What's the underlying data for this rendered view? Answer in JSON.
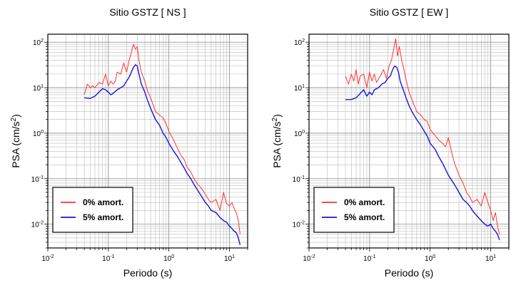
{
  "chart_data": [
    {
      "type": "line",
      "title": "Sitio GSTZ [ NS ]",
      "xlabel": "Periodo (s)",
      "ylabel_base": "PSA (cm/s",
      "ylabel_exp": "2",
      "ylabel_tail": ")",
      "x_scale": "log",
      "y_scale": "log",
      "xlim": [
        0.01,
        20
      ],
      "ylim": [
        0.003,
        150
      ],
      "grid": true,
      "legend_position": "bottom-left",
      "x_ticks": [
        {
          "base": "10",
          "exp": "-2"
        },
        {
          "base": "10",
          "exp": "-1"
        },
        {
          "base": "10",
          "exp": "0"
        },
        {
          "base": "10",
          "exp": "1"
        }
      ],
      "y_ticks": [
        {
          "base": "10",
          "exp": "-2"
        },
        {
          "base": "10",
          "exp": "-1"
        },
        {
          "base": "10",
          "exp": "0"
        },
        {
          "base": "10",
          "exp": "1"
        },
        {
          "base": "10",
          "exp": "2"
        }
      ],
      "series": [
        {
          "name": "0% amort.",
          "color": "#ff3333",
          "x": [
            0.04,
            0.045,
            0.05,
            0.055,
            0.06,
            0.07,
            0.08,
            0.09,
            0.1,
            0.11,
            0.12,
            0.13,
            0.14,
            0.16,
            0.18,
            0.2,
            0.22,
            0.24,
            0.26,
            0.28,
            0.3,
            0.32,
            0.35,
            0.4,
            0.45,
            0.5,
            0.6,
            0.7,
            0.8,
            0.9,
            1.0,
            1.2,
            1.4,
            1.6,
            1.8,
            2.0,
            2.3,
            2.6,
            3.0,
            3.5,
            4.0,
            4.5,
            5.0,
            6.0,
            7.0,
            8.0,
            9.0,
            10.0,
            11.0,
            12.0,
            13.0,
            14.0,
            15.0
          ],
          "y": [
            7,
            12,
            10,
            11,
            10,
            13,
            12,
            20,
            11,
            14,
            12,
            14,
            22,
            20,
            35,
            22,
            40,
            60,
            90,
            70,
            80,
            40,
            22,
            14,
            8,
            6,
            3,
            2.5,
            2.2,
            1.6,
            1.1,
            0.7,
            0.45,
            0.32,
            0.26,
            0.18,
            0.14,
            0.1,
            0.075,
            0.06,
            0.045,
            0.035,
            0.03,
            0.035,
            0.02,
            0.05,
            0.028,
            0.025,
            0.03,
            0.022,
            0.018,
            0.012,
            0.006
          ]
        },
        {
          "name": "5% amort.",
          "color": "#1515dd",
          "x": [
            0.04,
            0.05,
            0.06,
            0.07,
            0.08,
            0.09,
            0.1,
            0.11,
            0.12,
            0.14,
            0.16,
            0.18,
            0.2,
            0.22,
            0.24,
            0.26,
            0.28,
            0.3,
            0.32,
            0.35,
            0.4,
            0.45,
            0.5,
            0.6,
            0.7,
            0.8,
            0.9,
            1.0,
            1.2,
            1.4,
            1.6,
            1.8,
            2.0,
            2.3,
            2.6,
            3.0,
            3.5,
            4.0,
            4.5,
            5.0,
            6.0,
            7.0,
            8.0,
            9.0,
            10.0,
            11.0,
            12.0,
            13.0,
            14.0,
            15.0
          ],
          "y": [
            6,
            5.8,
            6.5,
            8,
            9.5,
            9,
            8,
            7,
            7.5,
            9,
            10,
            11,
            14,
            17,
            22,
            28,
            32,
            30,
            20,
            12,
            8,
            5,
            3.5,
            2,
            1.5,
            1,
            0.8,
            0.6,
            0.4,
            0.3,
            0.22,
            0.17,
            0.13,
            0.1,
            0.075,
            0.055,
            0.04,
            0.03,
            0.025,
            0.02,
            0.018,
            0.014,
            0.012,
            0.011,
            0.009,
            0.008,
            0.007,
            0.0065,
            0.005,
            0.0035
          ]
        }
      ]
    },
    {
      "type": "line",
      "title": "Sitio GSTZ [ EW ]",
      "xlabel": "Periodo (s)",
      "ylabel_base": "PSA (cm/s",
      "ylabel_exp": "2",
      "ylabel_tail": ")",
      "x_scale": "log",
      "y_scale": "log",
      "xlim": [
        0.01,
        20
      ],
      "ylim": [
        0.003,
        150
      ],
      "grid": true,
      "legend_position": "bottom-left",
      "x_ticks": [
        {
          "base": "10",
          "exp": "-2"
        },
        {
          "base": "10",
          "exp": "-1"
        },
        {
          "base": "10",
          "exp": "0"
        },
        {
          "base": "10",
          "exp": "1"
        }
      ],
      "y_ticks": [
        {
          "base": "10",
          "exp": "-2"
        },
        {
          "base": "10",
          "exp": "-1"
        },
        {
          "base": "10",
          "exp": "0"
        },
        {
          "base": "10",
          "exp": "1"
        },
        {
          "base": "10",
          "exp": "2"
        }
      ],
      "series": [
        {
          "name": "0% amort.",
          "color": "#ff3333",
          "x": [
            0.04,
            0.045,
            0.05,
            0.055,
            0.06,
            0.065,
            0.07,
            0.08,
            0.09,
            0.1,
            0.11,
            0.12,
            0.13,
            0.15,
            0.17,
            0.19,
            0.21,
            0.23,
            0.25,
            0.27,
            0.29,
            0.31,
            0.34,
            0.37,
            0.4,
            0.45,
            0.5,
            0.6,
            0.7,
            0.8,
            0.9,
            1.0,
            1.2,
            1.4,
            1.6,
            1.8,
            2.0,
            2.3,
            2.6,
            3.0,
            3.5,
            4.0,
            4.5,
            5.0,
            6.0,
            7.0,
            8.0,
            9.0,
            10.0,
            11.0,
            12.0,
            13.0,
            14.0
          ],
          "y": [
            18,
            12,
            20,
            14,
            25,
            12,
            18,
            20,
            10,
            22,
            14,
            20,
            13,
            18,
            25,
            16,
            30,
            40,
            70,
            120,
            50,
            80,
            40,
            25,
            15,
            8,
            5.5,
            3,
            2.5,
            2,
            1.8,
            1.2,
            0.9,
            0.7,
            0.6,
            0.5,
            0.8,
            0.35,
            0.2,
            0.12,
            0.08,
            0.05,
            0.04,
            0.03,
            0.035,
            0.025,
            0.05,
            0.03,
            0.02,
            0.012,
            0.018,
            0.009,
            0.006
          ]
        },
        {
          "name": "5% amort.",
          "color": "#1515dd",
          "x": [
            0.04,
            0.05,
            0.06,
            0.07,
            0.08,
            0.09,
            0.1,
            0.11,
            0.12,
            0.14,
            0.16,
            0.18,
            0.2,
            0.22,
            0.24,
            0.26,
            0.28,
            0.3,
            0.32,
            0.35,
            0.4,
            0.45,
            0.5,
            0.6,
            0.7,
            0.8,
            0.9,
            1.0,
            1.2,
            1.4,
            1.6,
            1.8,
            2.0,
            2.3,
            2.6,
            3.0,
            3.5,
            4.0,
            4.5,
            5.0,
            6.0,
            7.0,
            8.0,
            9.0,
            10.0,
            11.0,
            12.0,
            13.0,
            14.0
          ],
          "y": [
            5.5,
            5.5,
            6,
            7.5,
            9,
            6.5,
            8,
            7,
            9,
            10,
            12,
            13,
            16,
            18,
            25,
            30,
            28,
            22,
            14,
            10,
            6,
            4,
            3,
            2,
            1.5,
            1.1,
            0.85,
            0.6,
            0.45,
            0.3,
            0.22,
            0.16,
            0.12,
            0.09,
            0.07,
            0.05,
            0.035,
            0.03,
            0.025,
            0.02,
            0.015,
            0.012,
            0.01,
            0.009,
            0.01,
            0.008,
            0.007,
            0.006,
            0.0045
          ]
        }
      ]
    }
  ]
}
